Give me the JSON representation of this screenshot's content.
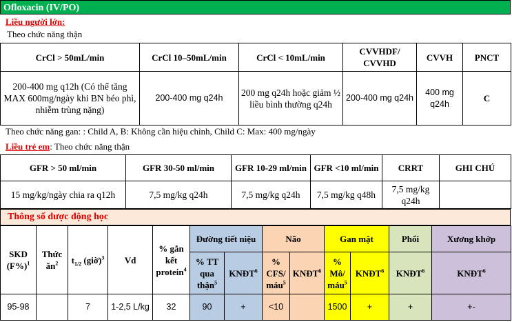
{
  "title": "Ofloxacin (IV/PO)",
  "adult": {
    "heading": "Liều người lớn:",
    "subheading": "Theo chức năng thận",
    "headers": [
      "CrCl > 50mL/min",
      "CrCl 10–50mL/min",
      "CrCl < 10mL/min",
      "CVVHDF/ CVVHD",
      "CVVH",
      "PNCT"
    ],
    "row": [
      "200-400 mg q12h (Có thể tăng MAX 600mg/ngày khi BN béo phì, nhiễm trùng nặng)",
      "200-400 mg q24h",
      "200 mg q24h hoặc giảm ½ liều bình thường q24h",
      "200-400 mg q24h",
      "400 mg q24h",
      "C"
    ],
    "hepatic": "Theo chức năng gan: : Child A, B: Không cần hiệu chỉnh, Child C: Max: 400 mg/ngày"
  },
  "child": {
    "heading": "Liều trẻ em",
    "subheading": ": Theo chức năng thận",
    "headers": [
      "GFR > 50 ml/min",
      "GFR 30-50 ml/min",
      "GFR 10-29 ml/min",
      "GFR <10 ml/min",
      "CRRT",
      "GHI CHÚ"
    ],
    "row": [
      "15 mg/kg/ngày chia ra q12h",
      "7,5 mg/kg q24h",
      "7,5 mg/kg q24h",
      "7,5 mg/kg q48h",
      "7,5 mg/kg q24h",
      ""
    ]
  },
  "pk": {
    "title": "Thông số dược động học",
    "col_skd": "SKD (F%)",
    "col_skd_sup": "1",
    "col_food": "Thức ăn",
    "col_food_sup": "2",
    "col_t_pre": "t",
    "col_t_sub": "1/2",
    "col_t_post": "(giờ)",
    "col_t_sup": "3",
    "col_vd": "Vd",
    "col_protein": "% gắn kết protein",
    "col_protein_sup": "4",
    "groups": [
      "Đường tiết niệu",
      "Não",
      "Gan mật",
      "Phổi",
      "Xương khớp"
    ],
    "sub_tt": "% TT qua thận",
    "sub_cfs": "% CFS/ máu",
    "sub_mo": "% Mô/ máu",
    "sub_kndt": "KNĐT",
    "sup5": "5",
    "sup6": "6",
    "values": [
      "95-98",
      "7",
      "1-2,5 L/kg",
      "32",
      "90",
      "+",
      "<10",
      "",
      "1500",
      "+",
      "+",
      "+-"
    ]
  }
}
